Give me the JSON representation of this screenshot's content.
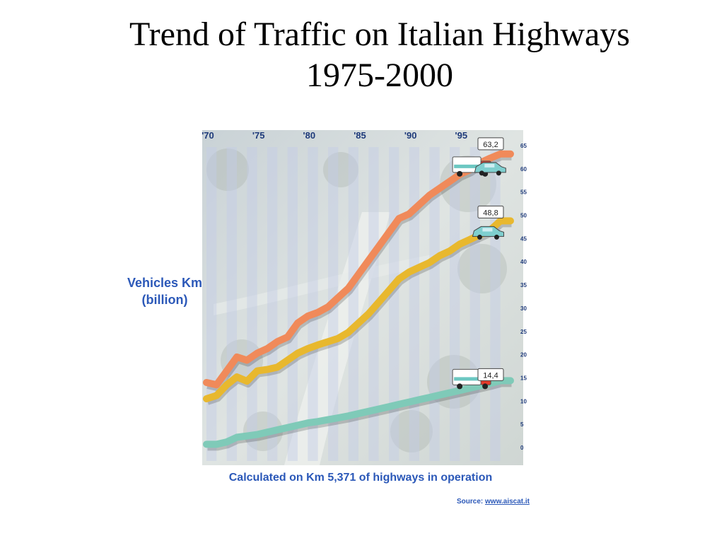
{
  "slide": {
    "title_line1": "Trend of Traffic on Italian Highways",
    "title_line2": "1975-2000",
    "ylabel_line1": "Vehicles Km",
    "ylabel_line2": "(billion)",
    "note": "Calculated on Km 5,371 of highways in operation",
    "source_label": "Source:",
    "source_link": "www.aiscat.it"
  },
  "colors": {
    "accent_text": "#2b58b8",
    "series_total": "#f08a5a",
    "series_cars": "#e8b82e",
    "series_heavy": "#7fcab8"
  },
  "chart_data": {
    "type": "line",
    "title": "",
    "xlabel": "",
    "ylabel": "Vehicles Km (billion)",
    "x_tick_labels": [
      "'70",
      "'75",
      "'80",
      "'85",
      "'90",
      "'95"
    ],
    "x_tick_years": [
      1970,
      1975,
      1980,
      1985,
      1990,
      1995
    ],
    "y_ticks": [
      0,
      5,
      10,
      15,
      20,
      25,
      30,
      35,
      40,
      45,
      50,
      55,
      60,
      65
    ],
    "ylim": [
      0,
      65
    ],
    "xlim": [
      1970,
      2000
    ],
    "x": [
      1970,
      1971,
      1972,
      1973,
      1974,
      1975,
      1976,
      1977,
      1978,
      1979,
      1980,
      1981,
      1982,
      1983,
      1984,
      1985,
      1986,
      1987,
      1988,
      1989,
      1990,
      1991,
      1992,
      1993,
      1994,
      1995,
      1996,
      1997,
      1998,
      1999,
      2000
    ],
    "series": [
      {
        "color_key": "series_total",
        "values": [
          14,
          13.5,
          16.5,
          19.5,
          18.8,
          20.3,
          21.3,
          22.8,
          23.8,
          26.8,
          28.3,
          29.1,
          30.3,
          32.3,
          34.3,
          37.3,
          40.3,
          43.3,
          46.3,
          49.3,
          50.3,
          52.3,
          54.3,
          55.8,
          57.3,
          58.8,
          59.8,
          61.3,
          62.3,
          63.2,
          63.2
        ],
        "end_label": "63,2"
      },
      {
        "color_key": "series_cars",
        "values": [
          10.5,
          11.2,
          13.5,
          15.2,
          14.3,
          16.5,
          16.8,
          17.3,
          18.8,
          20.3,
          21.3,
          22.1,
          22.8,
          23.5,
          24.8,
          26.8,
          28.8,
          31.3,
          33.8,
          36.3,
          37.8,
          38.8,
          39.8,
          41.3,
          42.3,
          43.8,
          44.8,
          45.8,
          46.8,
          48.8,
          48.8
        ],
        "end_label": "48,8"
      },
      {
        "color_key": "series_heavy",
        "values": [
          0.7,
          0.7,
          1.2,
          2.2,
          2.5,
          2.8,
          3.3,
          3.8,
          4.3,
          4.8,
          5.3,
          5.6,
          6.0,
          6.4,
          6.8,
          7.3,
          7.8,
          8.3,
          8.8,
          9.3,
          9.8,
          10.3,
          10.8,
          11.3,
          11.8,
          12.3,
          12.8,
          13.3,
          13.8,
          14.4,
          14.4
        ],
        "end_label": "14,4"
      }
    ]
  }
}
